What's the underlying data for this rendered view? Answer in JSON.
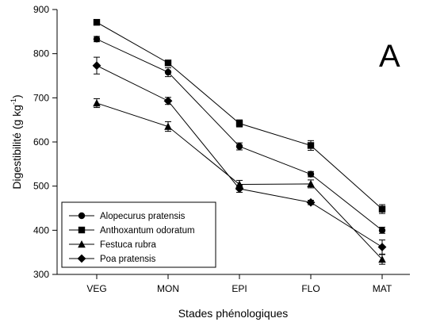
{
  "chart_data": {
    "type": "line",
    "panel_label": "A",
    "xlabel": "Stades phénologiques",
    "ylabel_main": "Digestibilité (g kg",
    "ylabel_sup": "-1",
    "ylabel_end": ")",
    "categories": [
      "VEG",
      "MON",
      "EPI",
      "FLO",
      "MAT"
    ],
    "ylim": [
      300,
      900
    ],
    "yticks": [
      "300",
      "400",
      "500",
      "600",
      "700",
      "800",
      "900"
    ],
    "grid": false,
    "legend_position": "bottom-left",
    "error_bars": true,
    "series": [
      {
        "name": "Alopecurus pratensis",
        "marker": "circle",
        "values": [
          833,
          758,
          590,
          527,
          400
        ],
        "errors": [
          6,
          10,
          8,
          6,
          7
        ]
      },
      {
        "name": "Anthoxantum odoratum",
        "marker": "square",
        "values": [
          871,
          779,
          642,
          592,
          448
        ],
        "errors": [
          4,
          6,
          8,
          11,
          10
        ]
      },
      {
        "name": "Festuca rubra",
        "marker": "triangle",
        "values": [
          688,
          635,
          504,
          505,
          334
        ],
        "errors": [
          10,
          11,
          9,
          9,
          11
        ]
      },
      {
        "name": "Poa pratensis",
        "marker": "diamond",
        "values": [
          773,
          693,
          494,
          463,
          362
        ],
        "errors": [
          19,
          8,
          8,
          5,
          16
        ]
      }
    ]
  }
}
